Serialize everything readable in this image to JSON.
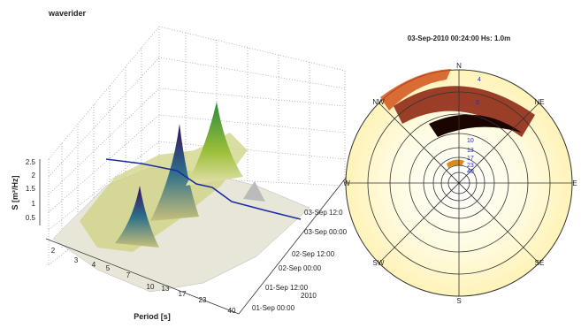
{
  "header": {
    "title": "waverider"
  },
  "left_panel": {
    "y_label": "S [m²/Hz]",
    "y_ticks": [
      "2.5",
      "2",
      "1.5",
      "1",
      "0.5"
    ],
    "x_label": "Period [s]",
    "x_ticks": [
      "2",
      "3",
      "4",
      "5",
      "7",
      "10",
      "13",
      "17",
      "23",
      "40"
    ],
    "time_ticks": [
      "03-Sep 12:0",
      "03-Sep 00:00",
      "02-Sep 12:00",
      "02-Sep 00:00",
      "01-Sep 12:00",
      "01-Sep 00:00"
    ],
    "year": "2010"
  },
  "right_panel": {
    "title": "03-Sep-2010 00:24:00 Hs: 1.0m",
    "directions": [
      "N",
      "NE",
      "E",
      "SE",
      "S",
      "SW",
      "W",
      "NW"
    ],
    "ring_labels": [
      "4",
      "6",
      "10",
      "13",
      "17",
      "23",
      "40"
    ]
  }
}
